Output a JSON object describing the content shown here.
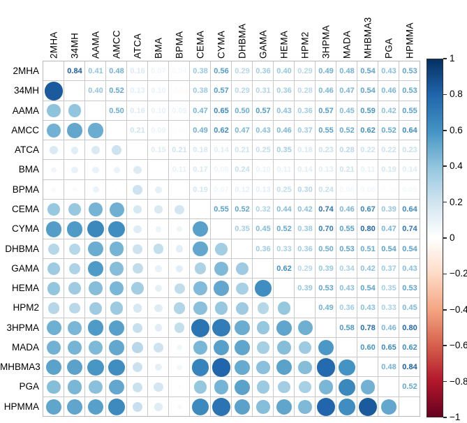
{
  "figure": {
    "kind": "correlation matrix (corrplot style): upper triangle shows coefficients, lower triangle shows circles sized and colored by correlation"
  },
  "chart_data": {
    "type": "heatmap",
    "subtype": "correlation-matrix",
    "labels": [
      "2MHA",
      "34MH",
      "AAMA",
      "AMCC",
      "ATCA",
      "BMA",
      "BPMA",
      "CEMA",
      "CYMA",
      "DHBMA",
      "GAMA",
      "HEMA",
      "HPM2",
      "3HPMA",
      "MADA",
      "MHBMA3",
      "PGA",
      "HPMMA"
    ],
    "upper_triangle": [
      [
        0.84,
        0.41,
        0.48,
        0.16,
        0.07,
        0.04,
        0.38,
        0.56,
        0.29,
        0.36,
        0.4,
        0.29,
        0.49,
        0.48,
        0.54,
        0.43,
        0.53
      ],
      [
        0.4,
        0.52,
        0.13,
        0.1,
        -0.03,
        0.38,
        0.57,
        0.29,
        0.31,
        0.36,
        0.28,
        0.46,
        0.47,
        0.54,
        0.46,
        0.53
      ],
      [
        0.5,
        0.16,
        0.1,
        0.09,
        0.47,
        0.65,
        0.5,
        0.57,
        0.43,
        0.36,
        0.57,
        0.45,
        0.59,
        0.42,
        0.55
      ],
      [
        0.21,
        0.09,
        0.02,
        0.49,
        0.62,
        0.47,
        0.43,
        0.46,
        0.37,
        0.55,
        0.52,
        0.62,
        0.52,
        0.64
      ],
      [
        0.15,
        0.21,
        0.18,
        0.14,
        0.21,
        0.25,
        0.35,
        0.18,
        0.23,
        0.28,
        0.22,
        0.22,
        0.23
      ],
      [
        0.11,
        0.17,
        0.08,
        0.24,
        0.1,
        0.11,
        0.14,
        0.13,
        0.21,
        0.11,
        0.19,
        0.14
      ],
      [
        0.19,
        0.07,
        0.12,
        0.13,
        0.25,
        0.3,
        0.24,
        0.06,
        0.06,
        0.02,
        0.05
      ],
      [
        0.55,
        0.52,
        0.32,
        0.44,
        0.42,
        0.74,
        0.46,
        0.67,
        0.39,
        0.64
      ],
      [
        0.35,
        0.45,
        0.52,
        0.38,
        0.7,
        0.55,
        0.8,
        0.47,
        0.74
      ],
      [
        0.36,
        0.33,
        0.36,
        0.5,
        0.53,
        0.51,
        0.54,
        0.54
      ],
      [
        0.62,
        0.29,
        0.39,
        0.34,
        0.42,
        0.37,
        0.43
      ],
      [
        0.39,
        0.53,
        0.43,
        0.54,
        0.35,
        0.53
      ],
      [
        0.49,
        0.36,
        0.43,
        0.33,
        0.45
      ],
      [
        0.58,
        0.78,
        0.46,
        0.8
      ],
      [
        0.6,
        0.65,
        0.62
      ],
      [
        0.48,
        0.84
      ],
      [
        0.52
      ],
      []
    ],
    "colorbar": {
      "min": -1,
      "max": 1,
      "tick_labels": [
        "1",
        "0.8",
        "0.6",
        "0.4",
        "0.2",
        "0",
        "−0.2",
        "−0.4",
        "−0.6",
        "−0.8",
        "−1"
      ],
      "palette_low_to_high": [
        "#67001f",
        "#b2182b",
        "#d6604d",
        "#f4a582",
        "#fddbc7",
        "#ffffff",
        "#d1e5f0",
        "#92c5de",
        "#4393c3",
        "#2166ac",
        "#053061"
      ]
    },
    "layout_hints": {
      "grid": "18x18, blank diagonal, numbers above diagonal, circles below diagonal",
      "legend_position": "right vertical colorbar"
    }
  }
}
